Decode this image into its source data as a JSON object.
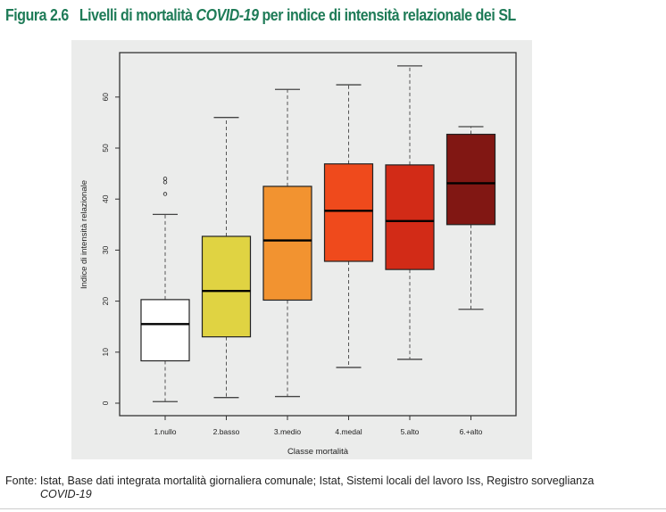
{
  "title": {
    "label": "Figura 2.6",
    "pre": "Livelli di mortalità ",
    "italic": "COVID-19",
    "post": " per indice di intensità relazionale dei SL"
  },
  "source": {
    "text": "Fonte: Istat, Base dati integrata mortalità giornaliera comunale; Istat, Sistemi locali del lavoro Iss, Registro sorveglianza",
    "italic": "COVID-19"
  },
  "chart_data": {
    "type": "boxplot",
    "xlabel": "Classe mortalità",
    "ylabel": "Indice di intensità relazionale",
    "ylim": [
      -2.4,
      69
    ],
    "yticks": [
      0,
      10,
      20,
      30,
      40,
      50,
      60
    ],
    "categories": [
      "1.nullo",
      "2.basso",
      "3.medio",
      "4.medal",
      "5.alto",
      "6.+alto"
    ],
    "boxes": [
      {
        "min": 0.3,
        "q1": 8.3,
        "median": 15.5,
        "q3": 20.3,
        "max": 37.0,
        "outliers": [
          41.0,
          43.3,
          44.0
        ],
        "color": "#ffffff"
      },
      {
        "min": 1.1,
        "q1": 13.0,
        "median": 22.0,
        "q3": 32.7,
        "max": 56.0,
        "outliers": [],
        "color": "#e0d342"
      },
      {
        "min": 1.3,
        "q1": 20.2,
        "median": 31.9,
        "q3": 42.5,
        "max": 61.5,
        "outliers": [],
        "color": "#f29330"
      },
      {
        "min": 7.0,
        "q1": 27.8,
        "median": 37.7,
        "q3": 46.9,
        "max": 62.4,
        "outliers": [],
        "color": "#ef4a1c"
      },
      {
        "min": 8.6,
        "q1": 26.2,
        "median": 35.7,
        "q3": 46.7,
        "max": 66.1,
        "outliers": [],
        "color": "#d22b17"
      },
      {
        "min": 18.4,
        "q1": 35.0,
        "median": 43.1,
        "q3": 52.7,
        "max": 54.2,
        "outliers": [],
        "color": "#811713"
      }
    ]
  }
}
